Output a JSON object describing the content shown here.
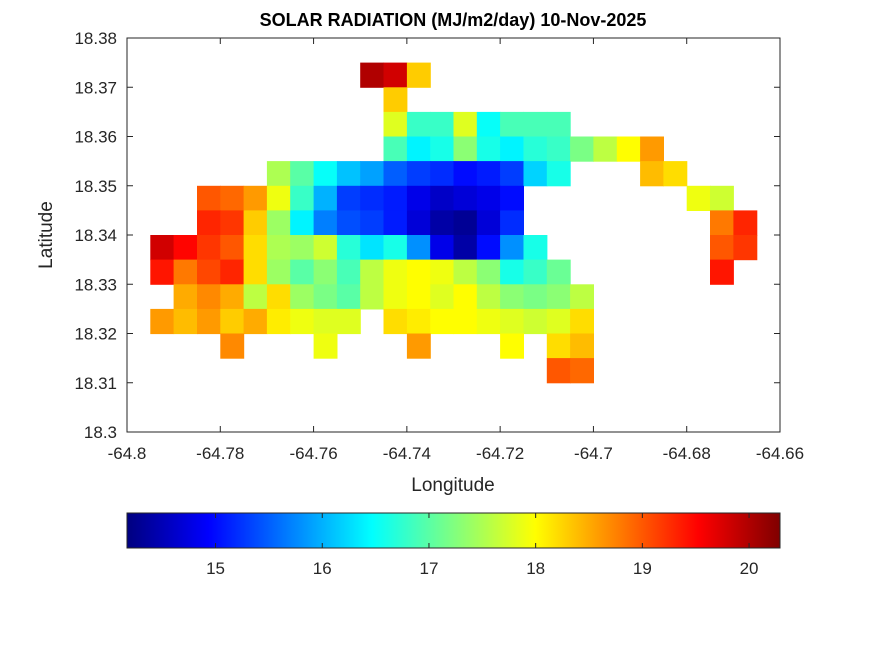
{
  "chart_data": {
    "type": "heatmap",
    "title": "SOLAR RADIATION (MJ/m2/day) 10-Nov-2025",
    "xlabel": "Longitude",
    "ylabel": "Latitude",
    "xlim": [
      -64.8,
      -64.66
    ],
    "ylim": [
      18.3,
      18.38
    ],
    "xticks": [
      "-64.8",
      "-64.78",
      "-64.76",
      "-64.74",
      "-64.72",
      "-64.7",
      "-64.68",
      "-64.66"
    ],
    "yticks": [
      "18.3",
      "18.31",
      "18.32",
      "18.33",
      "18.34",
      "18.35",
      "18.36",
      "18.37",
      "18.38"
    ],
    "colormap": "jet",
    "clim": [
      14.17,
      20.29
    ],
    "colorbar": {
      "location": "bottom",
      "ticks": [
        "15",
        "16",
        "17",
        "18",
        "19",
        "20"
      ]
    },
    "grid": false,
    "x": [
      -64.7975,
      -64.7925,
      -64.7875,
      -64.7825,
      -64.7775,
      -64.7725,
      -64.7675,
      -64.7625,
      -64.7575,
      -64.7525,
      -64.7475,
      -64.7425,
      -64.7375,
      -64.7325,
      -64.7275,
      -64.7225,
      -64.7175,
      -64.7125,
      -64.7075,
      -64.7025,
      -64.6975,
      -64.6925,
      -64.6875,
      -64.6825,
      -64.6775,
      -64.6725,
      -64.6675,
      -64.6625
    ],
    "y": [
      18.3725,
      18.3675,
      18.3625,
      18.3575,
      18.3525,
      18.3475,
      18.3425,
      18.3375,
      18.3325,
      18.3275,
      18.3225,
      18.3175,
      18.3125
    ],
    "z": [
      [
        null,
        null,
        null,
        null,
        null,
        null,
        null,
        null,
        null,
        null,
        20.0,
        19.8,
        18.3,
        null,
        null,
        null,
        null,
        null,
        null,
        null,
        null,
        null,
        null,
        null,
        null,
        null,
        null,
        null
      ],
      [
        null,
        null,
        null,
        null,
        null,
        null,
        null,
        null,
        null,
        null,
        null,
        18.3,
        null,
        null,
        null,
        null,
        null,
        null,
        null,
        null,
        null,
        null,
        null,
        null,
        null,
        null,
        null,
        null
      ],
      [
        null,
        null,
        null,
        null,
        null,
        null,
        null,
        null,
        null,
        null,
        null,
        17.8,
        16.8,
        16.8,
        17.8,
        16.5,
        16.9,
        16.9,
        16.9,
        null,
        null,
        null,
        null,
        null,
        null,
        null,
        null,
        null
      ],
      [
        null,
        null,
        null,
        null,
        null,
        null,
        null,
        null,
        null,
        null,
        null,
        16.9,
        16.4,
        16.6,
        17.3,
        16.6,
        16.4,
        16.7,
        16.8,
        17.2,
        17.6,
        18.0,
        18.6,
        null,
        null,
        null,
        null,
        null
      ],
      [
        null,
        null,
        null,
        null,
        null,
        null,
        17.5,
        17.0,
        16.5,
        16.1,
        15.9,
        15.5,
        15.3,
        15.2,
        15.0,
        15.1,
        15.3,
        16.2,
        16.6,
        null,
        null,
        null,
        18.4,
        18.2,
        null,
        null,
        null,
        null
      ],
      [
        null,
        null,
        null,
        19.0,
        18.9,
        18.6,
        17.9,
        16.8,
        16.0,
        15.3,
        15.2,
        15.1,
        14.8,
        14.6,
        14.7,
        14.8,
        15.0,
        null,
        null,
        null,
        null,
        null,
        null,
        null,
        17.9,
        17.7,
        null,
        null
      ],
      [
        null,
        null,
        null,
        19.3,
        19.2,
        18.3,
        17.4,
        16.4,
        15.7,
        15.4,
        15.3,
        15.1,
        14.7,
        14.4,
        14.3,
        14.7,
        15.2,
        null,
        null,
        null,
        null,
        null,
        null,
        null,
        null,
        18.8,
        19.3,
        null
      ],
      [
        null,
        19.8,
        19.5,
        19.2,
        19.0,
        18.2,
        17.5,
        17.4,
        17.7,
        16.7,
        16.3,
        16.6,
        15.8,
        14.8,
        14.4,
        15.0,
        15.8,
        16.6,
        null,
        null,
        null,
        null,
        null,
        null,
        null,
        19.0,
        19.2,
        null
      ],
      [
        null,
        19.4,
        18.8,
        19.1,
        19.3,
        18.2,
        17.4,
        17.0,
        17.3,
        16.9,
        17.6,
        17.9,
        18.0,
        17.9,
        17.6,
        17.3,
        16.6,
        16.8,
        17.1,
        null,
        null,
        null,
        null,
        null,
        null,
        19.4,
        null,
        null
      ],
      [
        null,
        null,
        18.5,
        18.7,
        18.5,
        17.6,
        18.2,
        17.4,
        17.2,
        17.0,
        17.6,
        17.9,
        18.0,
        17.8,
        18.0,
        17.6,
        17.3,
        17.2,
        17.3,
        17.6,
        null,
        null,
        null,
        null,
        null,
        null,
        null,
        null
      ],
      [
        null,
        18.6,
        18.4,
        18.6,
        18.3,
        18.5,
        18.1,
        17.9,
        17.8,
        17.8,
        null,
        18.2,
        18.1,
        18.0,
        18.0,
        17.9,
        17.8,
        17.7,
        17.8,
        18.2,
        null,
        null,
        null,
        null,
        null,
        null,
        null,
        null
      ],
      [
        null,
        null,
        null,
        null,
        18.7,
        null,
        null,
        null,
        17.9,
        null,
        null,
        null,
        18.6,
        null,
        null,
        null,
        18.0,
        null,
        18.2,
        18.4,
        null,
        null,
        null,
        null,
        null,
        null,
        null,
        null
      ],
      [
        null,
        null,
        null,
        null,
        null,
        null,
        null,
        null,
        null,
        null,
        null,
        null,
        null,
        null,
        null,
        null,
        null,
        null,
        19.0,
        18.9,
        null,
        null,
        null,
        null,
        null,
        null,
        null,
        null
      ]
    ]
  }
}
